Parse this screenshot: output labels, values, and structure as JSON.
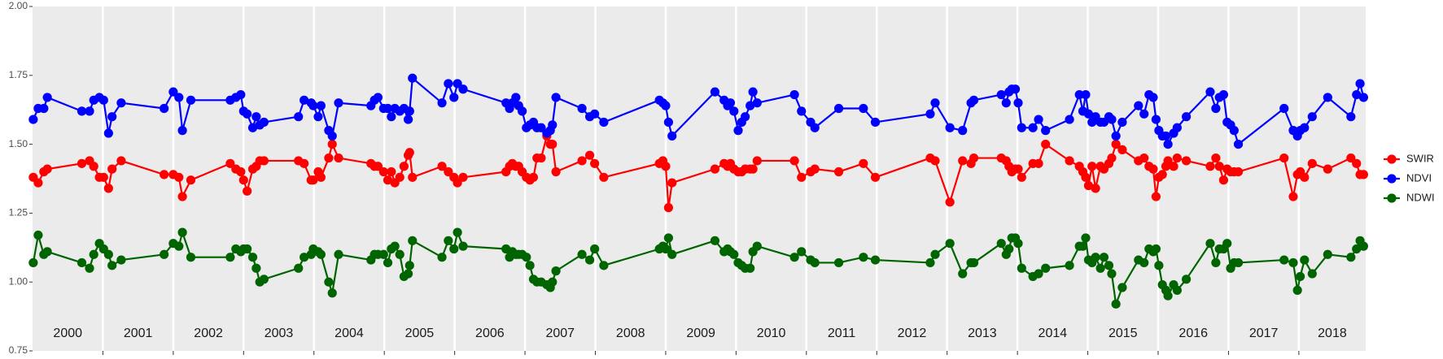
{
  "chart_data": {
    "type": "line",
    "x": [
      2000.01,
      2000.08,
      2000.16,
      2000.21,
      2000.7,
      2000.81,
      2000.87,
      2000.95,
      2001.01,
      2001.08,
      2001.13,
      2001.26,
      2001.87,
      2002.0,
      2002.08,
      2002.13,
      2002.25,
      2002.81,
      2002.89,
      2002.96,
      2003.0,
      2003.05,
      2003.13,
      2003.18,
      2003.23,
      2003.29,
      2003.78,
      2003.86,
      2003.96,
      2003.99,
      2004.06,
      2004.1,
      2004.21,
      2004.26,
      2004.35,
      2004.81,
      2004.86,
      2004.91,
      2004.99,
      2005.05,
      2005.1,
      2005.15,
      2005.22,
      2005.28,
      2005.34,
      2005.36,
      2005.4,
      2005.82,
      2005.91,
      2005.99,
      2006.04,
      2006.12,
      2006.73,
      2006.78,
      2006.82,
      2006.87,
      2006.91,
      2006.96,
      2007.02,
      2007.07,
      2007.12,
      2007.17,
      2007.23,
      2007.31,
      2007.36,
      2007.39,
      2007.44,
      2007.81,
      2007.92,
      2007.99,
      2008.12,
      2008.91,
      2008.96,
      2009.0,
      2009.04,
      2009.09,
      2009.7,
      2009.83,
      2009.88,
      2009.92,
      2009.97,
      2010.03,
      2010.08,
      2010.13,
      2010.2,
      2010.24,
      2010.3,
      2010.83,
      2010.93,
      2011.06,
      2011.12,
      2011.46,
      2011.81,
      2011.98,
      2012.76,
      2012.83,
      2013.04,
      2013.22,
      2013.34,
      2013.38,
      2013.77,
      2013.84,
      2013.88,
      2013.92,
      2013.97,
      2014.01,
      2014.06,
      2014.22,
      2014.3,
      2014.4,
      2014.74,
      2014.88,
      2014.93,
      2014.97,
      2015.01,
      2015.06,
      2015.11,
      2015.18,
      2015.23,
      2015.3,
      2015.34,
      2015.4,
      2015.49,
      2015.72,
      2015.8,
      2015.87,
      2015.93,
      2015.97,
      2016.01,
      2016.06,
      2016.11,
      2016.14,
      2016.22,
      2016.27,
      2016.4,
      2016.74,
      2016.82,
      2016.87,
      2016.93,
      2016.98,
      2017.03,
      2017.08,
      2017.14,
      2017.79,
      2017.92,
      2017.98,
      2018.02,
      2018.08,
      2018.19,
      2018.41,
      2018.74,
      2018.82,
      2018.87,
      2018.92
    ],
    "series": [
      {
        "name": "SWIR",
        "color": "#ff0000",
        "values": [
          1.38,
          1.36,
          1.4,
          1.41,
          1.43,
          1.44,
          1.42,
          1.38,
          1.38,
          1.34,
          1.41,
          1.44,
          1.39,
          1.39,
          1.38,
          1.31,
          1.37,
          1.43,
          1.41,
          1.4,
          1.37,
          1.33,
          1.41,
          1.42,
          1.44,
          1.44,
          1.44,
          1.43,
          1.37,
          1.37,
          1.4,
          1.38,
          1.45,
          1.5,
          1.45,
          1.43,
          1.42,
          1.42,
          1.4,
          1.37,
          1.4,
          1.36,
          1.38,
          1.42,
          1.46,
          1.47,
          1.38,
          1.42,
          1.4,
          1.38,
          1.36,
          1.38,
          1.4,
          1.42,
          1.43,
          1.42,
          1.42,
          1.4,
          1.38,
          1.37,
          1.38,
          1.45,
          1.45,
          1.53,
          1.5,
          1.5,
          1.4,
          1.44,
          1.46,
          1.43,
          1.38,
          1.43,
          1.44,
          1.42,
          1.27,
          1.36,
          1.41,
          1.43,
          1.42,
          1.43,
          1.41,
          1.4,
          1.4,
          1.41,
          1.41,
          1.41,
          1.44,
          1.44,
          1.38,
          1.4,
          1.41,
          1.4,
          1.43,
          1.38,
          1.45,
          1.44,
          1.29,
          1.44,
          1.43,
          1.45,
          1.45,
          1.44,
          1.42,
          1.4,
          1.41,
          1.41,
          1.38,
          1.43,
          1.43,
          1.5,
          1.44,
          1.42,
          1.4,
          1.38,
          1.35,
          1.42,
          1.34,
          1.42,
          1.41,
          1.43,
          1.45,
          1.5,
          1.48,
          1.44,
          1.45,
          1.42,
          1.41,
          1.31,
          1.38,
          1.39,
          1.42,
          1.44,
          1.42,
          1.45,
          1.44,
          1.42,
          1.45,
          1.42,
          1.37,
          1.41,
          1.4,
          1.4,
          1.4,
          1.45,
          1.31,
          1.39,
          1.4,
          1.38,
          1.43,
          1.41,
          1.45,
          1.43,
          1.39,
          1.39
        ]
      },
      {
        "name": "NDVI",
        "color": "#0000ff",
        "values": [
          1.59,
          1.63,
          1.63,
          1.67,
          1.62,
          1.62,
          1.66,
          1.67,
          1.66,
          1.54,
          1.6,
          1.65,
          1.63,
          1.69,
          1.67,
          1.55,
          1.66,
          1.66,
          1.67,
          1.68,
          1.62,
          1.61,
          1.56,
          1.6,
          1.57,
          1.58,
          1.6,
          1.66,
          1.65,
          1.64,
          1.6,
          1.64,
          1.55,
          1.53,
          1.65,
          1.64,
          1.66,
          1.67,
          1.63,
          1.63,
          1.6,
          1.63,
          1.62,
          1.63,
          1.59,
          1.62,
          1.74,
          1.65,
          1.72,
          1.67,
          1.72,
          1.7,
          1.65,
          1.63,
          1.65,
          1.67,
          1.64,
          1.62,
          1.56,
          1.57,
          1.58,
          1.56,
          1.56,
          1.54,
          1.55,
          1.57,
          1.67,
          1.63,
          1.6,
          1.61,
          1.58,
          1.66,
          1.65,
          1.64,
          1.58,
          1.53,
          1.69,
          1.66,
          1.64,
          1.65,
          1.62,
          1.55,
          1.58,
          1.6,
          1.64,
          1.69,
          1.65,
          1.68,
          1.62,
          1.58,
          1.56,
          1.63,
          1.63,
          1.58,
          1.61,
          1.65,
          1.56,
          1.55,
          1.65,
          1.66,
          1.68,
          1.65,
          1.69,
          1.7,
          1.7,
          1.65,
          1.56,
          1.56,
          1.59,
          1.55,
          1.59,
          1.68,
          1.62,
          1.68,
          1.61,
          1.58,
          1.6,
          1.58,
          1.58,
          1.6,
          1.59,
          1.53,
          1.58,
          1.64,
          1.61,
          1.68,
          1.67,
          1.59,
          1.55,
          1.53,
          1.53,
          1.5,
          1.54,
          1.56,
          1.6,
          1.69,
          1.63,
          1.67,
          1.68,
          1.58,
          1.57,
          1.55,
          1.5,
          1.63,
          1.55,
          1.53,
          1.55,
          1.56,
          1.6,
          1.67,
          1.6,
          1.68,
          1.72,
          1.67
        ]
      },
      {
        "name": "NDWI",
        "color": "#006400",
        "values": [
          1.07,
          1.17,
          1.1,
          1.11,
          1.07,
          1.05,
          1.1,
          1.14,
          1.12,
          1.1,
          1.06,
          1.08,
          1.1,
          1.14,
          1.13,
          1.18,
          1.09,
          1.09,
          1.12,
          1.11,
          1.12,
          1.12,
          1.09,
          1.05,
          1.0,
          1.01,
          1.05,
          1.09,
          1.1,
          1.12,
          1.11,
          1.1,
          1.0,
          0.96,
          1.1,
          1.08,
          1.1,
          1.1,
          1.1,
          1.07,
          1.12,
          1.13,
          1.1,
          1.02,
          1.03,
          1.06,
          1.15,
          1.09,
          1.15,
          1.12,
          1.18,
          1.13,
          1.12,
          1.09,
          1.11,
          1.1,
          1.1,
          1.1,
          1.09,
          1.06,
          1.01,
          1.0,
          1.0,
          0.99,
          0.98,
          1.0,
          1.04,
          1.1,
          1.08,
          1.12,
          1.06,
          1.12,
          1.13,
          1.12,
          1.16,
          1.1,
          1.15,
          1.11,
          1.12,
          1.11,
          1.1,
          1.07,
          1.06,
          1.05,
          1.05,
          1.11,
          1.13,
          1.09,
          1.11,
          1.08,
          1.07,
          1.07,
          1.09,
          1.08,
          1.07,
          1.1,
          1.14,
          1.03,
          1.07,
          1.07,
          1.14,
          1.1,
          1.12,
          1.16,
          1.16,
          1.14,
          1.05,
          1.02,
          1.03,
          1.05,
          1.06,
          1.13,
          1.13,
          1.16,
          1.08,
          1.07,
          1.09,
          1.05,
          1.09,
          1.06,
          1.03,
          0.92,
          0.98,
          1.08,
          1.07,
          1.12,
          1.11,
          1.12,
          1.06,
          0.99,
          0.97,
          0.95,
          0.99,
          0.97,
          1.01,
          1.14,
          1.07,
          1.12,
          1.12,
          1.14,
          1.05,
          1.07,
          1.07,
          1.08,
          1.07,
          0.97,
          1.02,
          1.08,
          1.03,
          1.1,
          1.09,
          1.12,
          1.15,
          1.13
        ]
      }
    ],
    "xlim": [
      2000,
      2018.95
    ],
    "xticks": [
      2001,
      2002,
      2003,
      2004,
      2005,
      2006,
      2007,
      2008,
      2009,
      2010,
      2011,
      2012,
      2013,
      2014,
      2015,
      2016,
      2017,
      2018
    ],
    "ylim": [
      0.75,
      2
    ],
    "yticks": [
      {
        "value": 0.75,
        "label": "0.75"
      },
      {
        "value": 1,
        "label": "1.00"
      },
      {
        "value": 1.25,
        "label": "1.25"
      },
      {
        "value": 1.5,
        "label": "1.50"
      },
      {
        "value": 1.75,
        "label": "1.75"
      },
      {
        "value": 2,
        "label": "2.00"
      }
    ],
    "year_labels": [
      "2000",
      "2001",
      "2002",
      "2003",
      "2004",
      "2005",
      "2006",
      "2007",
      "2008",
      "2009",
      "2010",
      "2011",
      "2012",
      "2013",
      "2014",
      "2015",
      "2016",
      "2017",
      "2018"
    ],
    "xgrid": true,
    "ygrid": false,
    "legend": "right"
  }
}
